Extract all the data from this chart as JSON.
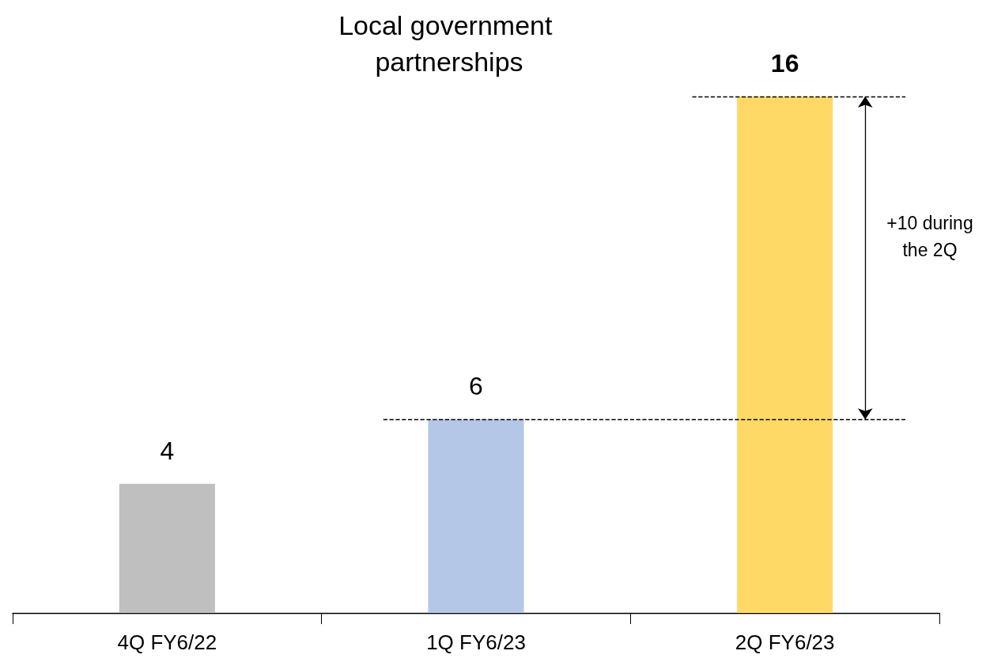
{
  "chart_data": {
    "type": "bar",
    "title": "Local government partnerships",
    "categories": [
      "4Q FY6/22",
      "1Q FY6/23",
      "2Q FY6/23"
    ],
    "values": [
      4,
      6,
      16
    ],
    "colors": [
      "#bfbfbf",
      "#b4c7e7",
      "#ffd966"
    ],
    "data_labels": true,
    "ref_lines": [
      {
        "axis": "y",
        "value": 6,
        "line_style": "dashed"
      },
      {
        "axis": "y",
        "value": 16,
        "line_style": "dashed"
      }
    ],
    "annotations": [
      "+10 during the 2Q"
    ]
  }
}
